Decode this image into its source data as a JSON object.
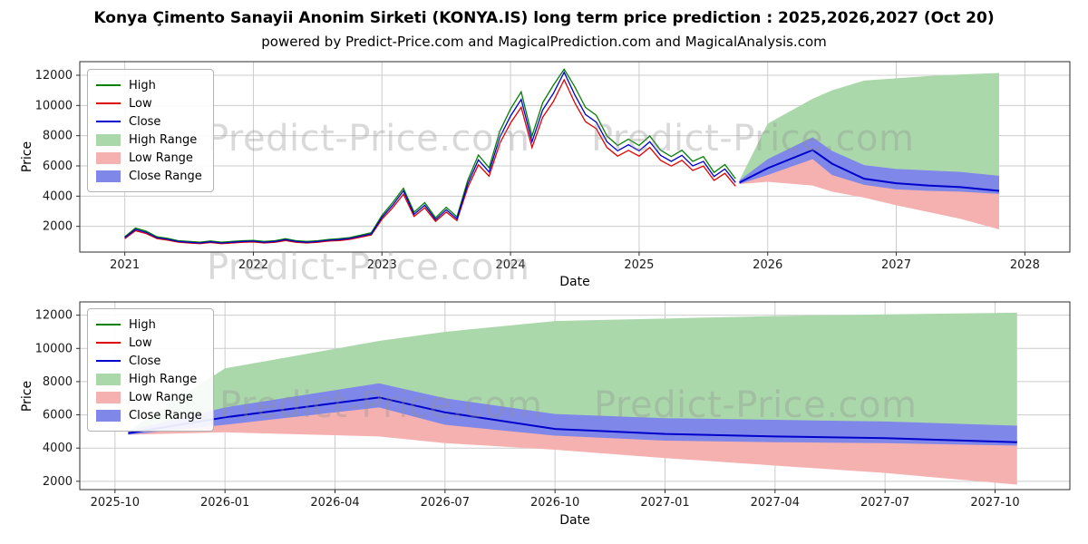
{
  "page": {
    "title": "Konya Çimento Sanayii Anonim Sirketi (KONYA.IS) long term price prediction : 2025,2026,2027 (Oct 20)",
    "subtitle": "powered by Predict-Price.com and MagicalPrediction.com and MagicalAnalysis.com",
    "watermark": "Predict-Price.com"
  },
  "colors": {
    "high": "#008000",
    "low": "#e00000",
    "close": "#0000cc",
    "high_range": "#abd8ab",
    "low_range": "#f5b0b0",
    "close_range": "#7f88e8",
    "grid": "#cccccc",
    "spine": "#2e2e2e"
  },
  "legend": [
    {
      "label": "High",
      "type": "line",
      "color": "high"
    },
    {
      "label": "Low",
      "type": "line",
      "color": "low"
    },
    {
      "label": "Close",
      "type": "line",
      "color": "close"
    },
    {
      "label": "High Range",
      "type": "patch",
      "color": "high_range"
    },
    {
      "label": "Low Range",
      "type": "patch",
      "color": "low_range"
    },
    {
      "label": "Close Range",
      "type": "patch",
      "color": "close_range"
    }
  ],
  "chart_data": [
    {
      "type": "line",
      "title": "Historical prices 2021-2025 with 2026-2027 prediction ranges",
      "xlabel": "Date",
      "ylabel": "Price",
      "xlim": [
        2020.65,
        2028.35
      ],
      "ylim": [
        300,
        12900
      ],
      "grid": true,
      "legend_position": "upper left",
      "xticks": {
        "values": [
          2021,
          2022,
          2023,
          2024,
          2025,
          2026,
          2027,
          2028
        ],
        "labels": [
          "2021",
          "2022",
          "2023",
          "2024",
          "2025",
          "2026",
          "2027",
          "2028"
        ]
      },
      "yticks": [
        2000,
        4000,
        6000,
        8000,
        10000,
        12000
      ],
      "history": {
        "x": [
          2021.0,
          2021.083,
          2021.167,
          2021.25,
          2021.333,
          2021.417,
          2021.5,
          2021.583,
          2021.667,
          2021.75,
          2021.833,
          2021.917,
          2022.0,
          2022.083,
          2022.167,
          2022.25,
          2022.333,
          2022.417,
          2022.5,
          2022.583,
          2022.667,
          2022.75,
          2022.833,
          2022.917,
          2023.0,
          2023.083,
          2023.167,
          2023.25,
          2023.333,
          2023.417,
          2023.5,
          2023.583,
          2023.667,
          2023.75,
          2023.833,
          2023.917,
          2024.0,
          2024.083,
          2024.167,
          2024.25,
          2024.333,
          2024.417,
          2024.5,
          2024.583,
          2024.667,
          2024.75,
          2024.833,
          2024.917,
          2025.0,
          2025.083,
          2025.167,
          2025.25,
          2025.333,
          2025.417,
          2025.5,
          2025.583,
          2025.667,
          2025.75
        ],
        "high": [
          1310,
          1890,
          1680,
          1310,
          1210,
          1050,
          1000,
          950,
          1030,
          950,
          1000,
          1050,
          1070,
          1000,
          1050,
          1180,
          1050,
          1000,
          1050,
          1130,
          1180,
          1260,
          1420,
          1580,
          2730,
          3570,
          4520,
          2940,
          3570,
          2570,
          3260,
          2630,
          5040,
          6720,
          5880,
          8300,
          9770,
          10900,
          7980,
          10180,
          11340,
          12400,
          11230,
          9870,
          9350,
          7980,
          7350,
          7770,
          7350,
          7980,
          7040,
          6620,
          7040,
          6300,
          6620,
          5570,
          6090,
          5150
        ],
        "low": [
          1190,
          1710,
          1520,
          1190,
          1090,
          950,
          900,
          860,
          930,
          860,
          900,
          950,
          970,
          900,
          950,
          1060,
          950,
          900,
          950,
          1030,
          1060,
          1140,
          1280,
          1430,
          2470,
          3230,
          4130,
          2660,
          3230,
          2330,
          2950,
          2380,
          4560,
          6080,
          5320,
          7500,
          8840,
          9880,
          7220,
          9220,
          10260,
          11700,
          10170,
          8930,
          8460,
          7220,
          6650,
          7030,
          6650,
          7220,
          6370,
          5990,
          6370,
          5700,
          5990,
          5040,
          5510,
          4660
        ],
        "close": [
          1250,
          1800,
          1600,
          1250,
          1150,
          1000,
          950,
          900,
          980,
          900,
          950,
          1000,
          1020,
          950,
          1000,
          1120,
          1000,
          950,
          1000,
          1080,
          1120,
          1200,
          1350,
          1500,
          2600,
          3400,
          4350,
          2800,
          3400,
          2450,
          3100,
          2500,
          4800,
          6400,
          5600,
          7900,
          9300,
          10400,
          7600,
          9700,
          10800,
          12200,
          10700,
          9400,
          8900,
          7600,
          7000,
          7400,
          7000,
          7600,
          6700,
          6300,
          6700,
          6000,
          6300,
          5300,
          5800,
          4900
        ]
      },
      "forecast": {
        "x": [
          2025.78,
          2026.0,
          2026.35,
          2026.5,
          2026.75,
          2027.0,
          2027.25,
          2027.5,
          2027.8
        ],
        "x_months": [
          "2025-10",
          "2026-01",
          "2026-05",
          "2026-07",
          "2026-10",
          "2027-01",
          "2027-04",
          "2027-07",
          "2027-10"
        ],
        "close": [
          4900,
          5850,
          7050,
          6150,
          5150,
          4850,
          4700,
          4600,
          4350
        ],
        "close_range_top": [
          5050,
          6450,
          7900,
          7000,
          6050,
          5800,
          5700,
          5600,
          5350
        ],
        "close_range_bottom": [
          4800,
          5400,
          6450,
          5400,
          4750,
          4450,
          4350,
          4300,
          4150
        ],
        "high_top": [
          5050,
          8800,
          10450,
          11000,
          11650,
          11800,
          11950,
          12050,
          12150
        ],
        "low_bottom": [
          4800,
          4950,
          4700,
          4300,
          3900,
          3400,
          2950,
          2500,
          1800
        ]
      }
    },
    {
      "type": "line",
      "title": "Prediction detail Oct 2025 - Oct 2027",
      "xlabel": "Date",
      "ylabel": "Price",
      "xlim": [
        2025.67,
        2027.92
      ],
      "ylim": [
        1500,
        12800
      ],
      "grid": true,
      "legend_position": "upper left",
      "xticks": {
        "values": [
          2025.75,
          2026.0,
          2026.25,
          2026.5,
          2026.75,
          2027.0,
          2027.25,
          2027.5,
          2027.75
        ],
        "labels": [
          "2025-10",
          "2026-01",
          "2026-04",
          "2026-07",
          "2026-10",
          "2027-01",
          "2027-04",
          "2027-07",
          "2027-10"
        ]
      },
      "yticks": [
        2000,
        4000,
        6000,
        8000,
        10000,
        12000
      ],
      "forecast_ref": 0
    }
  ]
}
